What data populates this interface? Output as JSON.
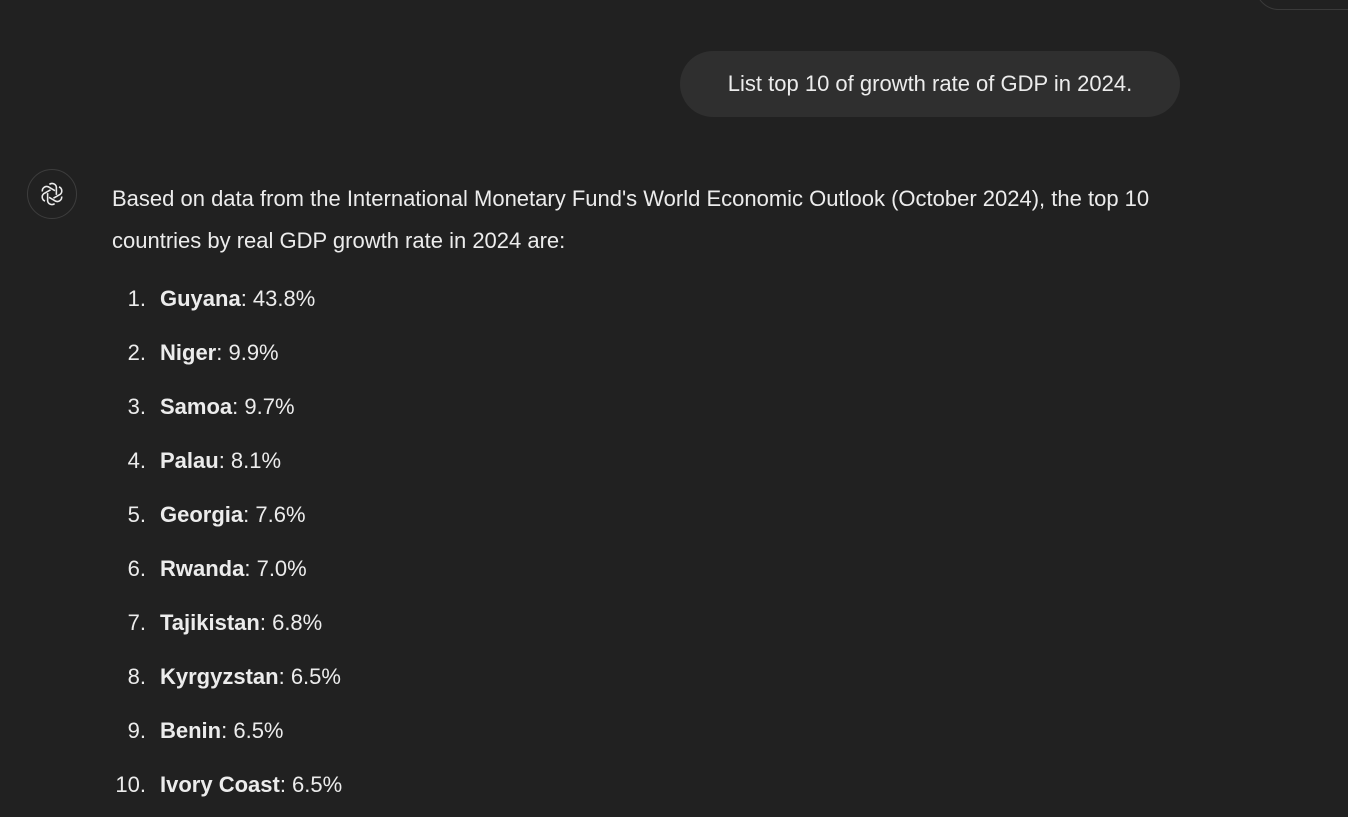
{
  "user_message": "List top 10 of growth rate of GDP in 2024.",
  "assistant": {
    "avatar_icon": "openai-logo-icon",
    "intro": "Based on data from the International Monetary Fund's World Economic Outlook (October 2024), the top 10 countries by real GDP growth rate in 2024 are:",
    "items": [
      {
        "num": "1.",
        "name": "Guyana",
        "value": ": 43.8%"
      },
      {
        "num": "2.",
        "name": "Niger",
        "value": ": 9.9%"
      },
      {
        "num": "3.",
        "name": "Samoa",
        "value": ": 9.7%"
      },
      {
        "num": "4.",
        "name": "Palau",
        "value": ": 8.1%"
      },
      {
        "num": "5.",
        "name": "Georgia",
        "value": ": 7.6%"
      },
      {
        "num": "6.",
        "name": "Rwanda",
        "value": ": 7.0%"
      },
      {
        "num": "7.",
        "name": "Tajikistan",
        "value": ": 6.8%"
      },
      {
        "num": "8.",
        "name": "Kyrgyzstan",
        "value": ": 6.5%"
      },
      {
        "num": "9.",
        "name": "Benin",
        "value": ": 6.5%"
      },
      {
        "num": "10.",
        "name": "Ivory Coast",
        "value": ": 6.5%"
      }
    ]
  },
  "colors": {
    "background": "#212121",
    "bubble": "#2f2f2f",
    "text": "#ececec"
  }
}
